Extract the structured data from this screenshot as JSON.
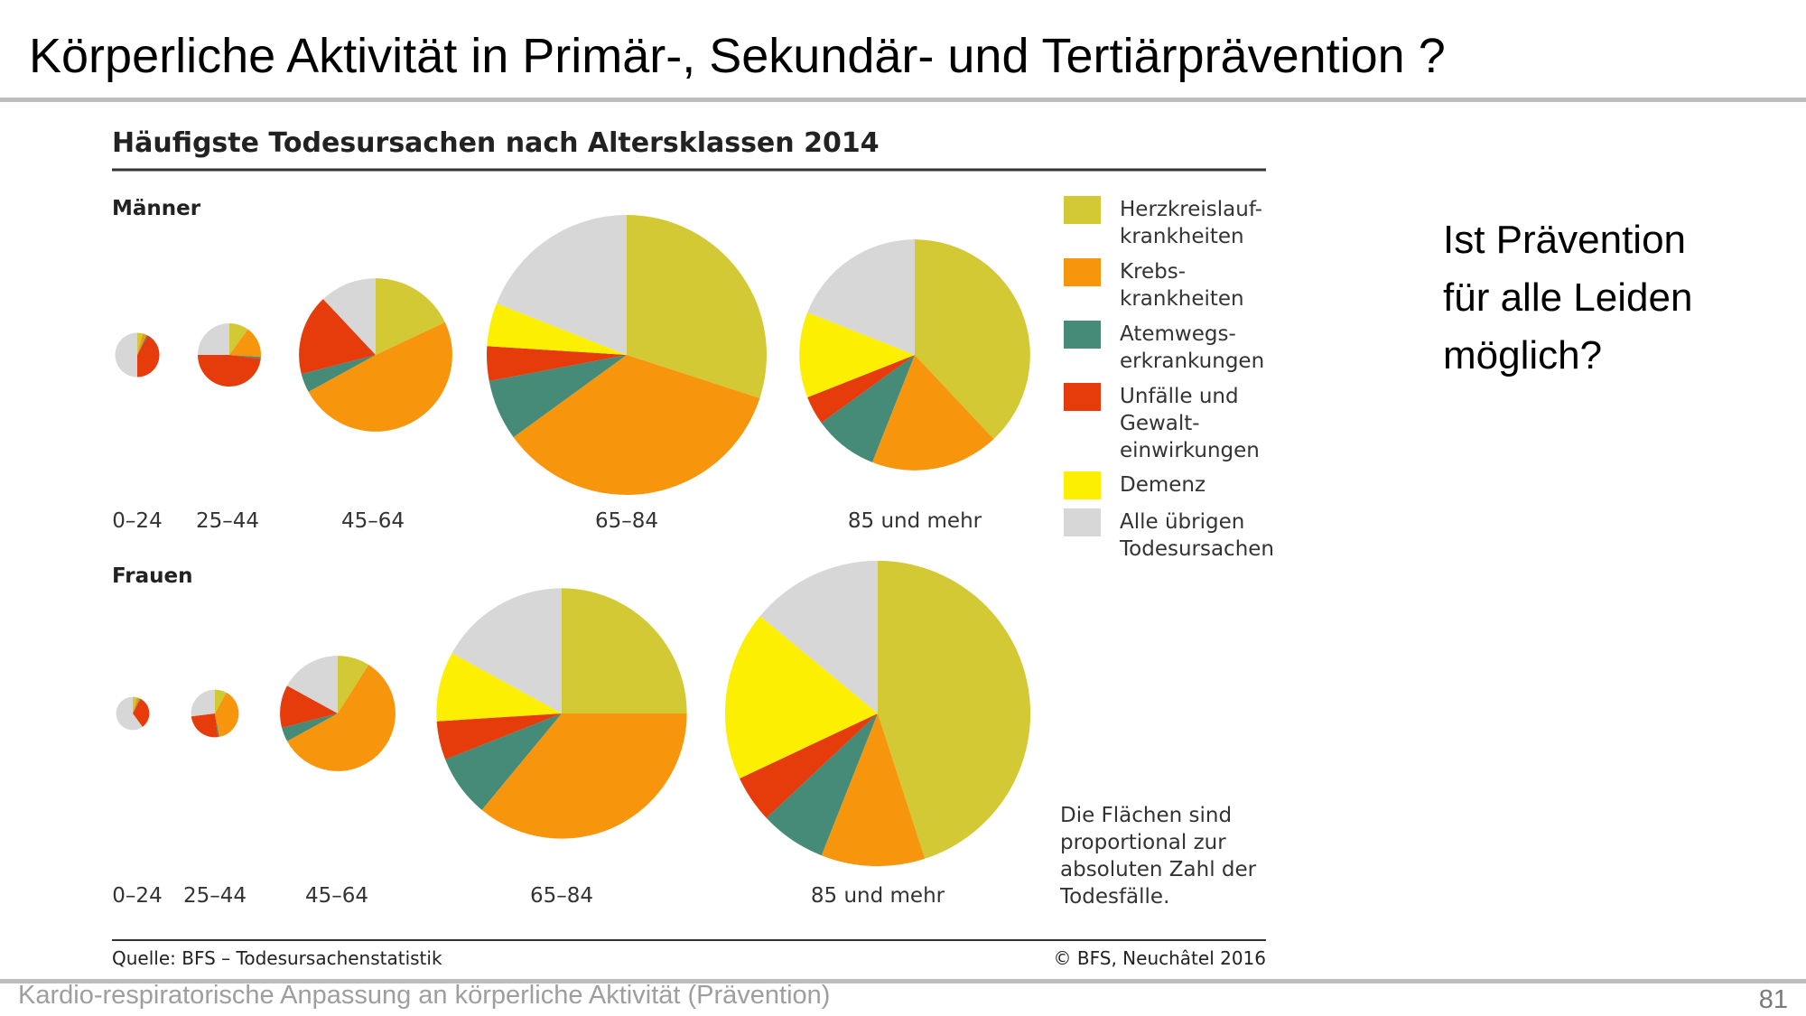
{
  "slide": {
    "title": "Körperliche Aktivität in Primär-, Sekundär- und Tertiärprävention ?",
    "side_question": [
      "Ist Prävention",
      "für alle Leiden",
      "möglich?"
    ],
    "footer": "Kardio-respiratorische Anpassung an körperliche Aktivität (Prävention)",
    "page_number": "81"
  },
  "colors": {
    "Herzkreislaufkrankheiten": "#d2c935",
    "Krebskrankheiten": "#f7960c",
    "Atemwegserkrankungen": "#468a78",
    "Unfälle und Gewalteinwirkungen": "#e63b0b",
    "Demenz": "#fdef02",
    "Alle übrigen Todesursachen": "#d7d7d7"
  },
  "chart_data": {
    "type": "pie",
    "title": "Häufigste Todesursachen nach Altersklassen 2014",
    "note": "Die Flächen sind proportional zur absoluten Zahl der Todesfälle.",
    "source": "Quelle: BFS – Todesursachenstatistik",
    "copyright": "© BFS, Neuchâtel 2016",
    "legend": [
      {
        "lines": [
          "Herzkreislauf-",
          "krankheiten"
        ],
        "color": "#d2c935"
      },
      {
        "lines": [
          "Krebs-",
          "krankheiten"
        ],
        "color": "#f7960c"
      },
      {
        "lines": [
          "Atemwegs-",
          "erkrankungen"
        ],
        "color": "#468a78"
      },
      {
        "lines": [
          "Unfälle und",
          "Gewalt-",
          "einwirkungen"
        ],
        "color": "#e63b0b"
      },
      {
        "lines": [
          "Demenz"
        ],
        "color": "#fdef02"
      },
      {
        "lines": [
          "Alle übrigen",
          "Todesursachen"
        ],
        "color": "#d7d7d7"
      }
    ],
    "series_order": [
      "Herzkreislaufkrankheiten",
      "Krebskrankheiten",
      "Atemwegserkrankungen",
      "Unfälle und Gewalteinwirkungen",
      "Demenz",
      "Alle übrigen Todesursachen"
    ],
    "groups": [
      {
        "name": "Männer",
        "pies": [
          {
            "label": "0–24",
            "relative_area": 0.025,
            "shares": [
              4,
              3,
              1,
              42,
              0,
              50
            ]
          },
          {
            "label": "25–44",
            "relative_area": 0.051,
            "shares": [
              10,
              16,
              1,
              48,
              0,
              25
            ]
          },
          {
            "label": "45–64",
            "relative_area": 0.3,
            "shares": [
              18,
              49,
              4,
              17,
              0,
              12
            ]
          },
          {
            "label": "65–84",
            "relative_area": 1.0,
            "shares": [
              30,
              35,
              7,
              4,
              5,
              19
            ]
          },
          {
            "label": "85 und mehr",
            "relative_area": 0.68,
            "shares": [
              38,
              18,
              9,
              4,
              12,
              19
            ]
          }
        ]
      },
      {
        "name": "Frauen",
        "pies": [
          {
            "label": "0–24",
            "relative_area": 0.014,
            "shares": [
              4,
              3,
              1,
              32,
              0,
              60
            ]
          },
          {
            "label": "25–44",
            "relative_area": 0.029,
            "shares": [
              8,
              39,
              1,
              25,
              0,
              27
            ]
          },
          {
            "label": "45–64",
            "relative_area": 0.17,
            "shares": [
              9,
              58,
              4,
              12,
              0,
              17
            ]
          },
          {
            "label": "65–84",
            "relative_area": 0.8,
            "shares": [
              25,
              36,
              8,
              5,
              9,
              17
            ]
          },
          {
            "label": "85 und mehr",
            "relative_area": 1.19,
            "shares": [
              45,
              11,
              7,
              5,
              18,
              14
            ]
          }
        ]
      }
    ]
  }
}
